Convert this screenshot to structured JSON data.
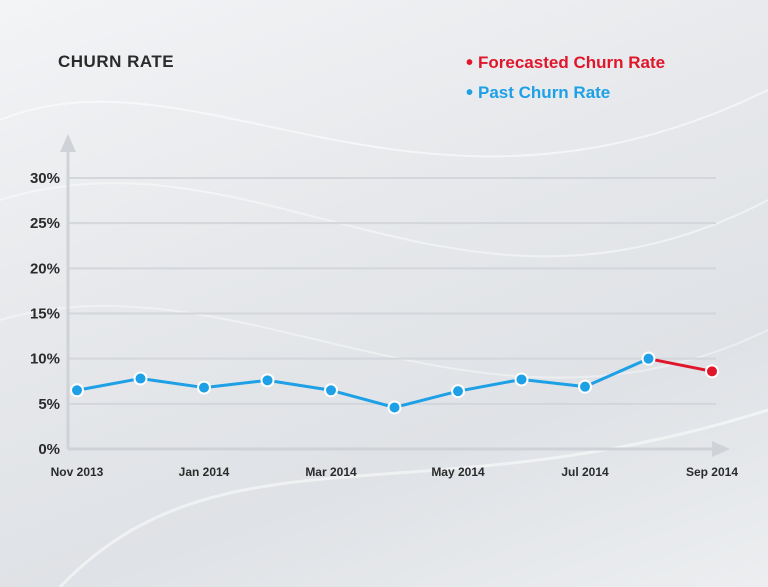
{
  "chart_data": {
    "type": "line",
    "title": "CHURN RATE",
    "xlabel": "",
    "ylabel": "",
    "ylim": [
      0,
      30
    ],
    "yticks": [
      "0%",
      "5%",
      "10%",
      "15%",
      "20%",
      "25%",
      "30%"
    ],
    "ytick_values": [
      0,
      5,
      10,
      15,
      20,
      25,
      30
    ],
    "xticks": [
      "Nov 2013",
      "Jan 2014",
      "Mar 2014",
      "May 2014",
      "Jul 2014",
      "Sep 2014"
    ],
    "x": [
      "Nov 2013",
      "Dec 2013",
      "Jan 2014",
      "Feb 2014",
      "Mar 2014",
      "Apr 2014",
      "May 2014",
      "Jun 2014",
      "Jul 2014",
      "Aug 2014",
      "Sep 2014"
    ],
    "series": [
      {
        "name": "Past Churn Rate",
        "color": "#1ea0e6",
        "values": [
          6.5,
          7.8,
          6.8,
          7.6,
          6.5,
          4.6,
          6.4,
          7.7,
          6.9,
          10.0,
          null
        ]
      },
      {
        "name": "Forecasted Churn Rate",
        "color": "#e0162b",
        "values": [
          null,
          null,
          null,
          null,
          null,
          null,
          null,
          null,
          null,
          10.0,
          8.6
        ]
      }
    ],
    "grid": true,
    "legend_position": "top-right"
  },
  "legend": {
    "forecast_label": "Forecasted Churn Rate",
    "past_label": "Past Churn Rate",
    "dot": "•"
  }
}
